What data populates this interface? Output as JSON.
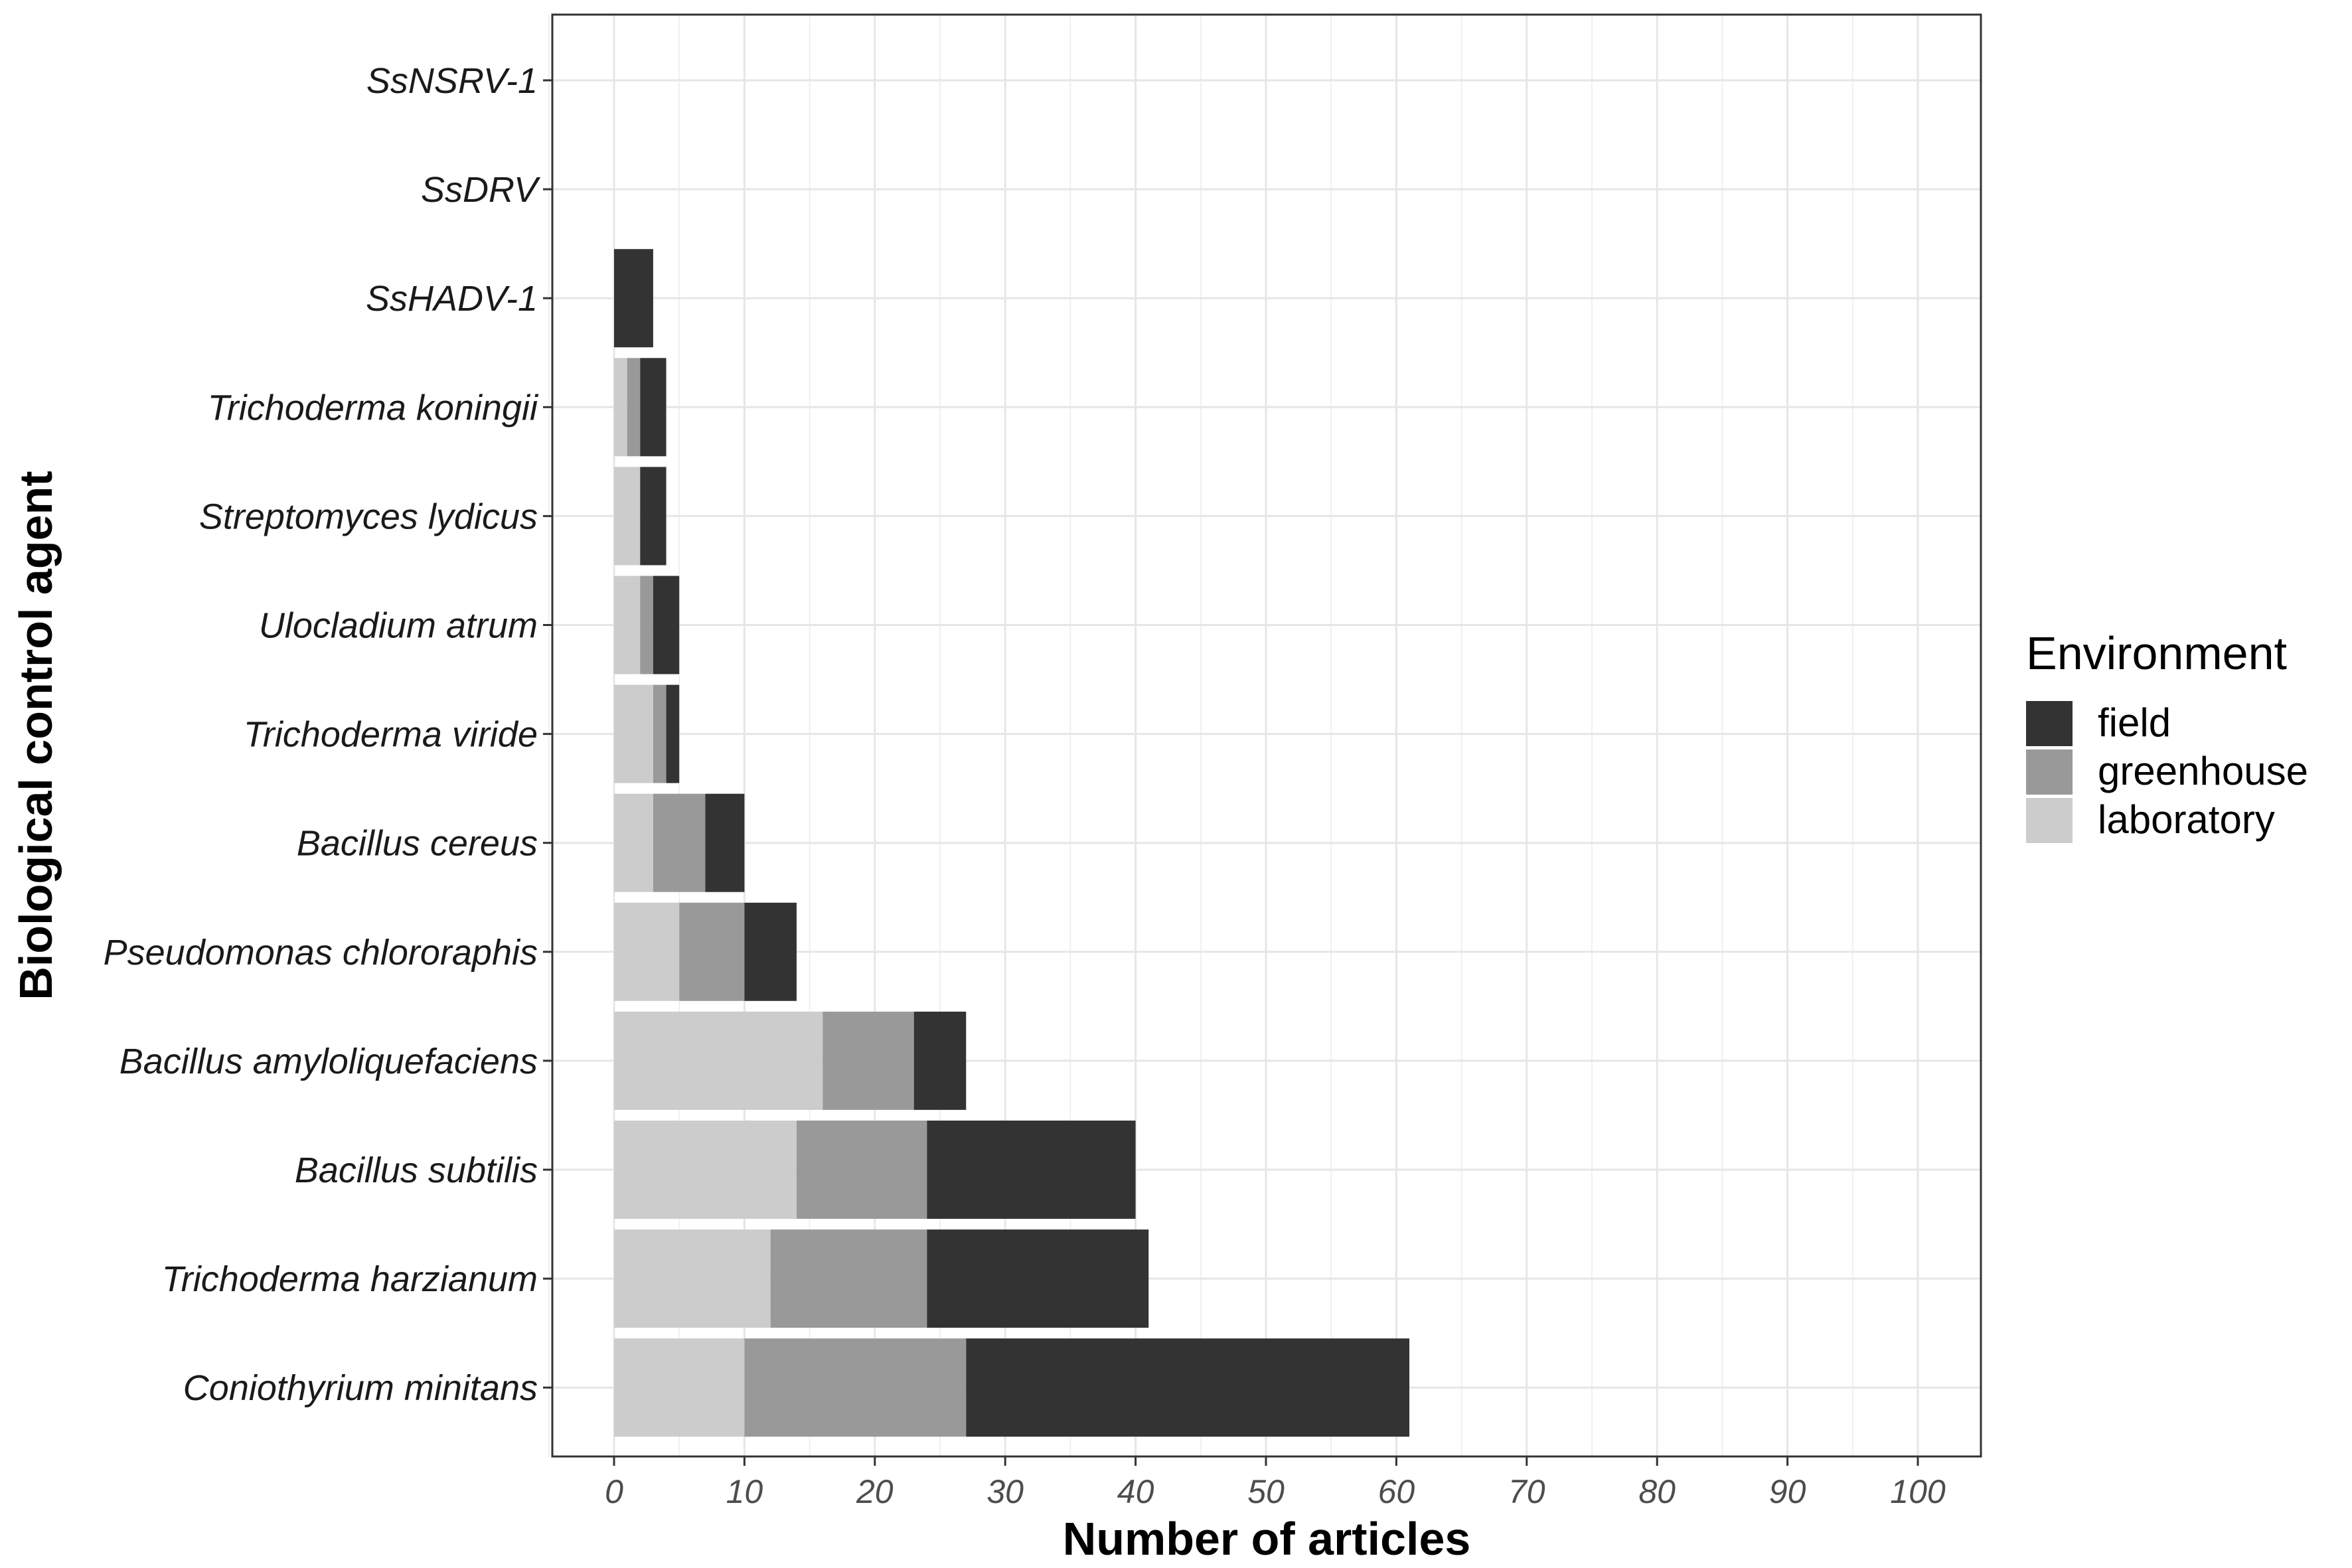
{
  "chart_data": {
    "type": "bar",
    "orientation": "horizontal",
    "stacked": true,
    "title": "",
    "xlabel": "Number of articles",
    "ylabel": "Biological control agent",
    "xlim": [
      0,
      100
    ],
    "xticks": [
      "0",
      "10",
      "20",
      "30",
      "40",
      "50",
      "60",
      "70",
      "80",
      "90",
      "100"
    ],
    "grid": true,
    "legend_position": "right",
    "legend_title": "Environment",
    "categories": [
      "SsNSRV-1",
      "SsDRV",
      "SsHADV-1",
      "Trichoderma koningii",
      "Streptomyces lydicus",
      "Ulocladium atrum",
      "Trichoderma viride",
      "Bacillus cereus",
      "Pseudomonas chlororaphis",
      "Bacillus amyloliquefaciens",
      "Bacillus subtilis",
      "Trichoderma harzianum",
      "Coniothyrium minitans"
    ],
    "series": [
      {
        "name": "laboratory",
        "color": "#cccccc",
        "values": [
          0,
          0,
          0,
          1,
          2,
          2,
          3,
          3,
          5,
          16,
          14,
          12,
          10
        ]
      },
      {
        "name": "greenhouse",
        "color": "#999999",
        "values": [
          0,
          0,
          0,
          1,
          0,
          1,
          1,
          4,
          5,
          7,
          10,
          12,
          17
        ]
      },
      {
        "name": "field",
        "color": "#333333",
        "values": [
          0,
          0,
          3,
          2,
          2,
          2,
          1,
          3,
          4,
          4,
          16,
          17,
          34
        ]
      }
    ],
    "legend_order": [
      "field",
      "greenhouse",
      "laboratory"
    ]
  }
}
